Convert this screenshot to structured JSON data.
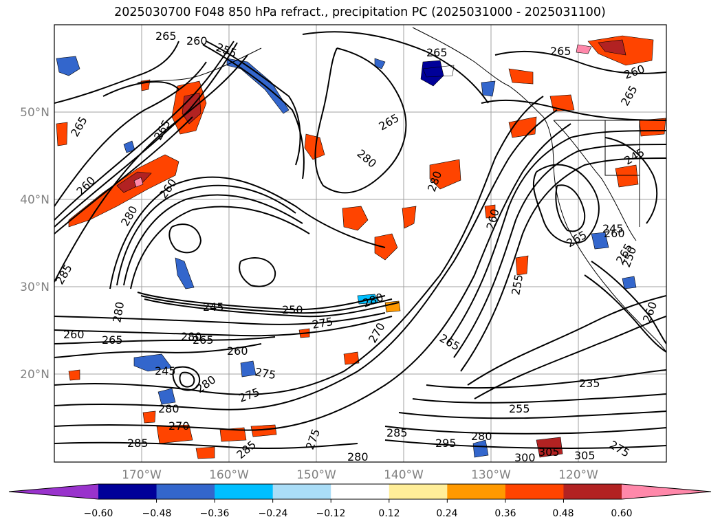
{
  "title": "2025030700 F048 850 hPa refract., precipitation PC (2025031000 - 2025031100)",
  "map": {
    "lat_labels": [
      "50°N",
      "40°N",
      "30°N",
      "20°N"
    ],
    "lon_labels": [
      "170°W",
      "160°W",
      "150°W",
      "140°W",
      "130°W",
      "120°W"
    ],
    "contour_labels": [
      "265",
      "260",
      "255",
      "265",
      "265",
      "260",
      "265",
      "265",
      "260",
      "285",
      "280",
      "260",
      "265",
      "280",
      "280",
      "260",
      "255",
      "260",
      "265",
      "265",
      "280",
      "260",
      "245",
      "250",
      "280",
      "275",
      "270",
      "265",
      "280",
      "265",
      "260",
      "275",
      "280",
      "275",
      "280",
      "245",
      "235",
      "255",
      "270",
      "285",
      "285",
      "295",
      "280",
      "275",
      "280",
      "285",
      "300",
      "305",
      "305",
      "275",
      "245",
      "265",
      "250",
      "260",
      "245",
      "265"
    ]
  },
  "colorbar": {
    "colors": [
      "#9933cc",
      "#000099",
      "#3366cc",
      "#00bfff",
      "#aaddf7",
      "#ffffff",
      "#ffee99",
      "#ff9900",
      "#ff4400",
      "#b22222",
      "#ff88aa"
    ],
    "tick_labels": [
      "−0.60",
      "−0.48",
      "−0.36",
      "−0.24",
      "−0.12",
      "0.12",
      "0.24",
      "0.36",
      "0.48",
      "0.60"
    ]
  }
}
